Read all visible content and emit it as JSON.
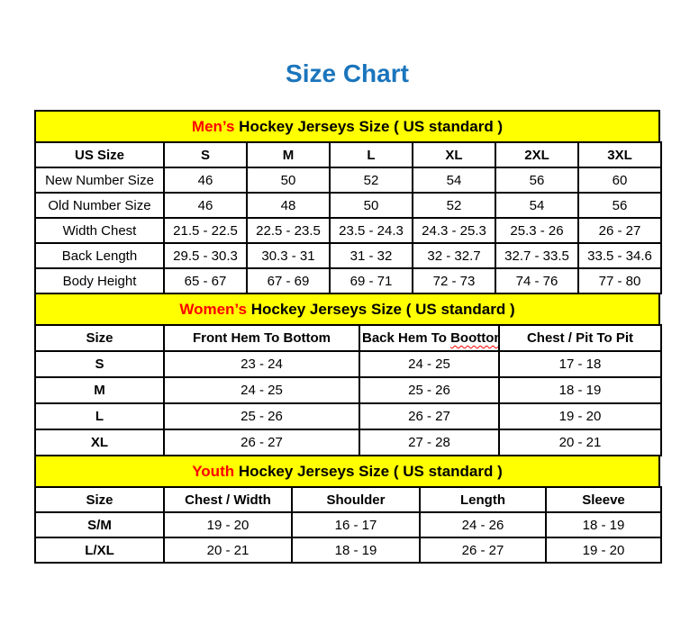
{
  "page": {
    "title": "Size Chart",
    "title_color": "#1b75bc"
  },
  "colors": {
    "section_header_bg": "#ffff00",
    "accent_red": "#ff0000",
    "border": "#000000",
    "title_blue": "#1b75bc"
  },
  "mens": {
    "header": {
      "accent": "Men’s",
      "rest": " Hockey Jerseys Size ( US standard )"
    },
    "columns": [
      "US Size",
      "S",
      "M",
      "L",
      "XL",
      "2XL",
      "3XL"
    ],
    "rows": [
      {
        "label": "New Number Size",
        "values": [
          "46",
          "50",
          "52",
          "54",
          "56",
          "60"
        ]
      },
      {
        "label": "Old Number Size",
        "values": [
          "46",
          "48",
          "50",
          "52",
          "54",
          "56"
        ]
      },
      {
        "label": "Width Chest",
        "values": [
          "21.5 - 22.5",
          "22.5 - 23.5",
          "23.5 - 24.3",
          "24.3 - 25.3",
          "25.3 - 26",
          "26 - 27"
        ]
      },
      {
        "label": "Back Length",
        "values": [
          "29.5 - 30.3",
          "30.3 - 31",
          "31 - 32",
          "32 - 32.7",
          "32.7 - 33.5",
          "33.5 - 34.6"
        ]
      },
      {
        "label": "Body Height",
        "values": [
          "65 - 67",
          "67 - 69",
          "69 - 71",
          "72 - 73",
          "74 - 76",
          "77 - 80"
        ]
      }
    ]
  },
  "womens": {
    "header": {
      "accent": "Women’s",
      "rest": " Hockey Jerseys Size ( US standard )"
    },
    "columns": [
      "Size",
      "Front Hem To Bottom",
      "Back Hem To Boottom",
      "Chest / Pit To Pit"
    ],
    "misspelled_word": "Boottom",
    "rows": [
      {
        "label": "S",
        "values": [
          "23 - 24",
          "24 - 25",
          "17 - 18"
        ]
      },
      {
        "label": "M",
        "values": [
          "24 - 25",
          "25 - 26",
          "18 - 19"
        ]
      },
      {
        "label": "L",
        "values": [
          "25 - 26",
          "26 - 27",
          "19 - 20"
        ]
      },
      {
        "label": "XL",
        "values": [
          "26 - 27",
          "27 - 28",
          "20 - 21"
        ]
      }
    ]
  },
  "youth": {
    "header": {
      "accent": "Youth",
      "rest": " Hockey Jerseys Size ( US standard )"
    },
    "columns": [
      "Size",
      "Chest / Width",
      "Shoulder",
      "Length",
      "Sleeve"
    ],
    "rows": [
      {
        "label": "S/M",
        "values": [
          "19 - 20",
          "16 - 17",
          "24 - 26",
          "18 - 19"
        ]
      },
      {
        "label": "L/XL",
        "values": [
          "20 - 21",
          "18 - 19",
          "26 - 27",
          "19 - 20"
        ]
      }
    ]
  }
}
